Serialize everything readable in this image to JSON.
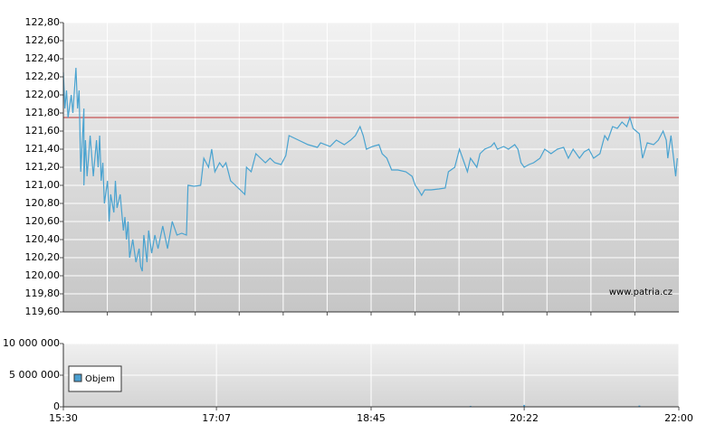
{
  "chart_data": [
    {
      "type": "line",
      "annotation": "www.patria.cz",
      "color": "#4aa3d0",
      "reference_line": 121.75,
      "reference_color": "#c03030",
      "xlim": [
        930,
        1320
      ],
      "xgrid": [
        957.86,
        985.71,
        1013.57,
        1041.43,
        1069.29,
        1097.14,
        1125,
        1152.86,
        1180.71,
        1208.57,
        1236.43,
        1264.29,
        1292.14
      ],
      "ylim": [
        119.6,
        122.8
      ],
      "yticks": [
        {
          "value": 119.6,
          "label": "119,60"
        },
        {
          "value": 119.8,
          "label": "119,80"
        },
        {
          "value": 120.0,
          "label": "120,00"
        },
        {
          "value": 120.2,
          "label": "120,20"
        },
        {
          "value": 120.4,
          "label": "120,40"
        },
        {
          "value": 120.6,
          "label": "120,60"
        },
        {
          "value": 120.8,
          "label": "120,80"
        },
        {
          "value": 121.0,
          "label": "121,00"
        },
        {
          "value": 121.2,
          "label": "121,20"
        },
        {
          "value": 121.4,
          "label": "121,40"
        },
        {
          "value": 121.6,
          "label": "121,60"
        },
        {
          "value": 121.8,
          "label": "121,80"
        },
        {
          "value": 122.0,
          "label": "122,00"
        },
        {
          "value": 122.2,
          "label": "122,20"
        },
        {
          "value": 122.4,
          "label": "122,40"
        },
        {
          "value": 122.6,
          "label": "122,60"
        },
        {
          "value": 122.8,
          "label": "122,80"
        }
      ],
      "x": [
        930,
        931,
        932,
        933,
        935,
        936,
        937,
        938,
        939,
        940,
        941,
        943,
        943,
        944,
        945,
        947,
        949,
        951,
        952,
        953,
        954,
        955,
        956,
        958,
        959,
        960,
        962,
        963,
        964,
        966,
        968,
        969,
        970,
        971,
        972,
        974,
        976,
        978,
        979,
        980,
        981,
        983,
        984,
        986,
        988,
        990,
        993,
        996,
        999,
        1002,
        1005,
        1008,
        1009,
        1013,
        1017,
        1019,
        1022,
        1024,
        1026,
        1029,
        1031,
        1033,
        1036,
        1039,
        1042,
        1045,
        1046,
        1049,
        1052,
        1055,
        1058,
        1061,
        1064,
        1068,
        1071,
        1073,
        1079,
        1085,
        1091,
        1093,
        1099,
        1103,
        1108,
        1112,
        1115,
        1118,
        1120,
        1122,
        1126,
        1130,
        1132,
        1135,
        1138,
        1142,
        1147,
        1151,
        1153,
        1155,
        1157,
        1159,
        1163,
        1168,
        1172,
        1174,
        1178,
        1181,
        1184,
        1186,
        1188,
        1192,
        1194,
        1197,
        1201,
        1203,
        1205,
        1209,
        1212,
        1216,
        1218,
        1220,
        1222,
        1225,
        1228,
        1232,
        1235,
        1239,
        1243,
        1247,
        1250,
        1253,
        1257,
        1260,
        1263,
        1266,
        1270,
        1273,
        1275,
        1278,
        1281,
        1284,
        1287,
        1289,
        1291,
        1295,
        1297,
        1300,
        1304,
        1307,
        1310,
        1312,
        1313,
        1315,
        1318,
        1319
      ],
      "values": [
        122.25,
        121.85,
        122.05,
        121.75,
        122.0,
        121.8,
        122.05,
        122.3,
        121.85,
        122.05,
        121.15,
        121.85,
        121.0,
        121.5,
        121.1,
        121.55,
        121.1,
        121.5,
        121.2,
        121.55,
        121.05,
        121.25,
        120.8,
        121.05,
        120.6,
        120.9,
        120.7,
        121.05,
        120.75,
        120.9,
        120.5,
        120.65,
        120.4,
        120.6,
        120.2,
        120.4,
        120.15,
        120.3,
        120.1,
        120.05,
        120.45,
        120.15,
        120.5,
        120.25,
        120.45,
        120.3,
        120.55,
        120.3,
        120.6,
        120.45,
        120.47,
        120.45,
        121.0,
        120.99,
        121.0,
        121.3,
        121.2,
        121.4,
        121.15,
        121.25,
        121.2,
        121.25,
        121.05,
        121.0,
        120.95,
        120.9,
        121.2,
        121.15,
        121.35,
        121.3,
        121.25,
        121.3,
        121.25,
        121.23,
        121.33,
        121.55,
        121.5,
        121.45,
        121.42,
        121.47,
        121.43,
        121.5,
        121.45,
        121.5,
        121.55,
        121.65,
        121.55,
        121.4,
        121.43,
        121.45,
        121.35,
        121.3,
        121.17,
        121.17,
        121.15,
        121.1,
        121.0,
        120.95,
        120.89,
        120.95,
        120.95,
        120.96,
        120.97,
        121.15,
        121.2,
        121.4,
        121.25,
        121.15,
        121.3,
        121.2,
        121.35,
        121.4,
        121.43,
        121.47,
        121.4,
        121.43,
        121.4,
        121.45,
        121.4,
        121.25,
        121.2,
        121.23,
        121.25,
        121.3,
        121.4,
        121.35,
        121.4,
        121.42,
        121.3,
        121.4,
        121.3,
        121.37,
        121.4,
        121.3,
        121.35,
        121.55,
        121.5,
        121.65,
        121.63,
        121.7,
        121.65,
        121.75,
        121.63,
        121.57,
        121.3,
        121.47,
        121.45,
        121.5,
        121.6,
        121.5,
        121.3,
        121.55,
        121.1,
        121.3
      ]
    },
    {
      "type": "bar",
      "xlim": [
        930,
        1320
      ],
      "xticks": [
        {
          "value": 930,
          "label": "15:30"
        },
        {
          "value": 1027,
          "label": "17:07"
        },
        {
          "value": 1125,
          "label": "18:45"
        },
        {
          "value": 1222,
          "label": "20:22"
        },
        {
          "value": 1320,
          "label": "22:00"
        }
      ],
      "ylim": [
        0,
        10000000
      ],
      "yticks": [
        0,
        {
          "value": 5000000,
          "label": "5 000 000"
        },
        {
          "value": 10000000,
          "label": "10 000 000"
        }
      ],
      "x": [
        1188,
        1222,
        1295
      ],
      "series": [
        {
          "name": "Objem",
          "color": "#4a9fd0",
          "values": [
            150000,
            300000,
            200000
          ]
        }
      ]
    }
  ]
}
